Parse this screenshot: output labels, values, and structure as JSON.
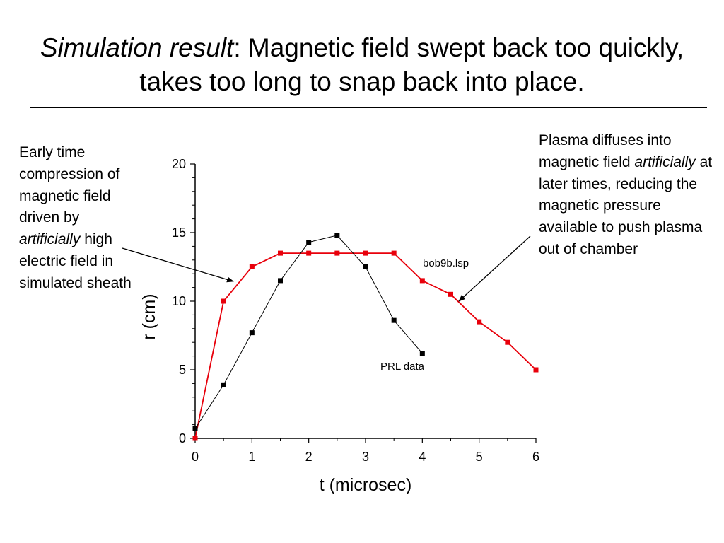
{
  "slide": {
    "title_emphasis": "Simulation result",
    "title_rest": ": Magnetic field swept back too quickly, takes too long to snap back into place."
  },
  "annotations": {
    "left": {
      "before": "Early time compression of magnetic field driven by ",
      "emphasis": "artificially",
      "after": " high electric field in simulated sheath"
    },
    "right": {
      "before": "Plasma diffuses into magnetic field ",
      "emphasis": "artificially",
      "after": " at later times, reducing the magnetic pressure available to push plasma out of chamber"
    }
  },
  "chart_data": {
    "type": "line",
    "xlabel": "t (microsec)",
    "ylabel": "r (cm)",
    "xlim": [
      0,
      6
    ],
    "ylim": [
      0,
      20
    ],
    "xticks": [
      0,
      1,
      2,
      3,
      4,
      5,
      6
    ],
    "yticks": [
      0,
      5,
      10,
      15,
      20
    ],
    "grid": false,
    "series": [
      {
        "name": "bob9b.lsp",
        "color": "#e8000b",
        "x": [
          0,
          0.5,
          1,
          1.5,
          2,
          2.5,
          3,
          3.5,
          4,
          4.5,
          5,
          5.5,
          6
        ],
        "y": [
          0,
          10,
          12.5,
          13.5,
          13.5,
          13.5,
          13.5,
          13.5,
          11.5,
          10.5,
          8.5,
          7,
          5
        ]
      },
      {
        "name": "PRL data",
        "color": "#000000",
        "x": [
          0,
          0.5,
          1,
          1.5,
          2,
          2.5,
          3,
          3.5,
          4
        ],
        "y": [
          0.7,
          3.9,
          7.7,
          11.5,
          14.3,
          14.8,
          12.5,
          8.6,
          6.2
        ]
      }
    ]
  }
}
